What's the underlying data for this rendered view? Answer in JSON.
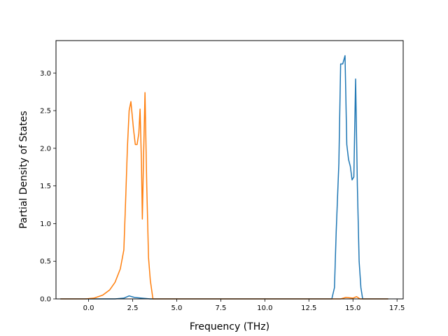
{
  "chart_data": {
    "type": "line",
    "title": "",
    "xlabel": "Frequency (THz)",
    "ylabel": "Partial Density of States",
    "xlim": [
      -1.85,
      17.85
    ],
    "ylim": [
      0.0,
      3.43
    ],
    "xticks": [
      0.0,
      2.5,
      5.0,
      7.5,
      10.0,
      12.5,
      15.0,
      17.5
    ],
    "xtick_labels": [
      "0.0",
      "2.5",
      "5.0",
      "7.5",
      "10.0",
      "12.5",
      "15.0",
      "17.5"
    ],
    "yticks": [
      0.0,
      0.5,
      1.0,
      1.5,
      2.0,
      2.5,
      3.0
    ],
    "ytick_labels": [
      "0.0",
      "0.5",
      "1.0",
      "1.5",
      "2.0",
      "2.5",
      "3.0"
    ],
    "grid": false,
    "series": [
      {
        "color": "#1f77b4",
        "points": [
          [
            -1.6,
            0.0
          ],
          [
            1.5,
            0.0
          ],
          [
            2.0,
            0.01
          ],
          [
            2.3,
            0.04
          ],
          [
            2.6,
            0.02
          ],
          [
            3.0,
            0.01
          ],
          [
            3.5,
            0.0
          ],
          [
            13.8,
            0.0
          ],
          [
            13.95,
            0.15
          ],
          [
            14.05,
            0.9
          ],
          [
            14.2,
            1.8
          ],
          [
            14.3,
            3.12
          ],
          [
            14.42,
            3.12
          ],
          [
            14.55,
            3.23
          ],
          [
            14.65,
            2.05
          ],
          [
            14.75,
            1.85
          ],
          [
            14.85,
            1.76
          ],
          [
            14.95,
            1.58
          ],
          [
            15.05,
            1.62
          ],
          [
            15.15,
            2.92
          ],
          [
            15.25,
            1.5
          ],
          [
            15.35,
            0.5
          ],
          [
            15.45,
            0.15
          ],
          [
            15.55,
            0.0
          ],
          [
            17.0,
            0.0
          ]
        ]
      },
      {
        "color": "#ff7f0e",
        "points": [
          [
            -1.6,
            0.0
          ],
          [
            -0.2,
            0.0
          ],
          [
            0.3,
            0.01
          ],
          [
            0.8,
            0.05
          ],
          [
            1.2,
            0.12
          ],
          [
            1.5,
            0.22
          ],
          [
            1.8,
            0.4
          ],
          [
            2.0,
            0.65
          ],
          [
            2.1,
            1.3
          ],
          [
            2.2,
            2.0
          ],
          [
            2.3,
            2.5
          ],
          [
            2.4,
            2.62
          ],
          [
            2.55,
            2.25
          ],
          [
            2.65,
            2.05
          ],
          [
            2.75,
            2.05
          ],
          [
            2.85,
            2.2
          ],
          [
            2.92,
            2.52
          ],
          [
            3.0,
            1.8
          ],
          [
            3.05,
            1.06
          ],
          [
            3.12,
            1.9
          ],
          [
            3.2,
            2.74
          ],
          [
            3.3,
            1.5
          ],
          [
            3.4,
            0.55
          ],
          [
            3.5,
            0.25
          ],
          [
            3.65,
            0.0
          ],
          [
            14.3,
            0.0
          ],
          [
            14.6,
            0.02
          ],
          [
            15.0,
            0.01
          ],
          [
            15.2,
            0.03
          ],
          [
            15.4,
            0.0
          ],
          [
            17.0,
            0.0
          ]
        ]
      }
    ]
  }
}
